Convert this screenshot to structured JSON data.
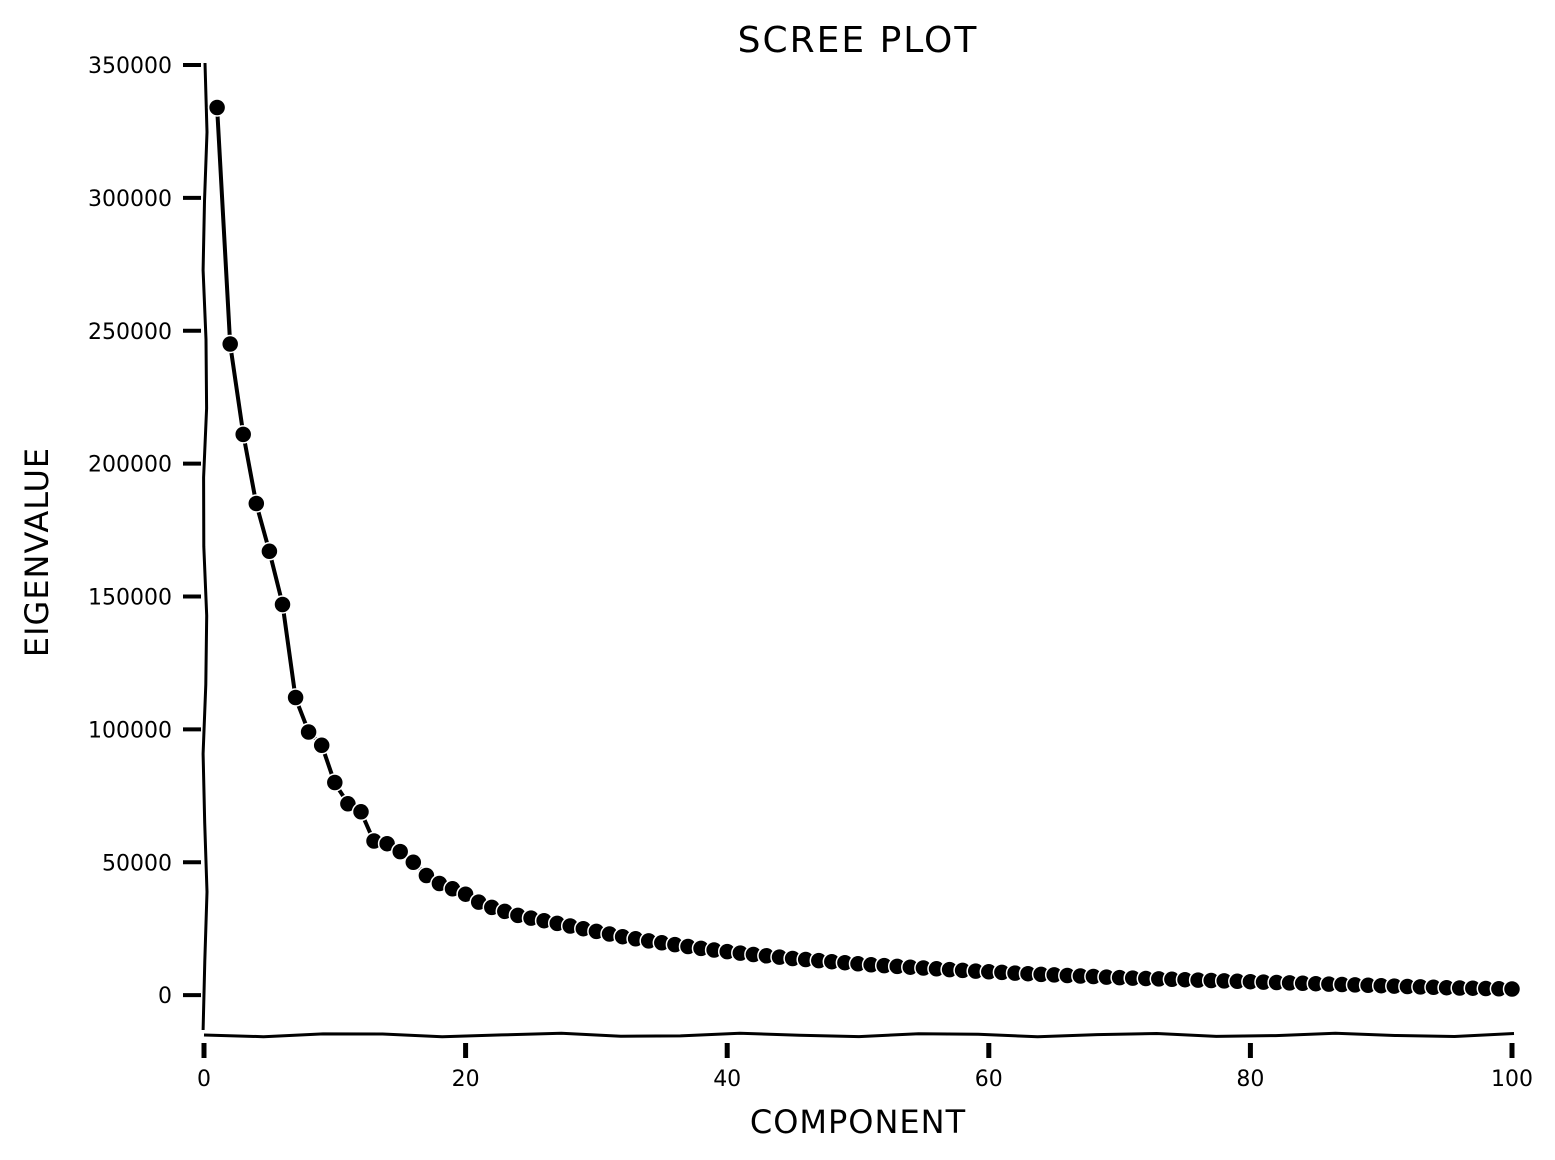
{
  "chart_data": {
    "type": "line",
    "title": "SCREE PLOT",
    "xlabel": "COMPONENT",
    "ylabel": "EIGENVALUE",
    "xlim": [
      0,
      100
    ],
    "ylim": [
      -15000,
      350000
    ],
    "xticks": [
      0,
      20,
      40,
      60,
      80,
      100
    ],
    "xtick_labels": [
      "0",
      "20",
      "40",
      "60",
      "80",
      "100"
    ],
    "yticks": [
      0,
      50000,
      100000,
      150000,
      200000,
      250000,
      300000,
      350000
    ],
    "ytick_labels": [
      "0",
      "50000",
      "100000",
      "150000",
      "200000",
      "250000",
      "300000",
      "350000"
    ],
    "grid": false,
    "style": "xkcd",
    "line_color": "#000000",
    "marker": "circle",
    "series": [
      {
        "x": [
          1,
          2,
          3,
          4,
          5,
          6,
          7,
          8,
          9,
          10,
          11,
          12,
          13,
          14,
          15,
          16,
          17,
          18,
          19,
          20,
          21,
          22,
          23,
          24,
          25,
          26,
          27,
          28,
          29,
          30,
          31,
          32,
          33,
          34,
          35,
          36,
          37,
          38,
          39,
          40,
          41,
          42,
          43,
          44,
          45,
          46,
          47,
          48,
          49,
          50,
          51,
          52,
          53,
          54,
          55,
          56,
          57,
          58,
          59,
          60,
          61,
          62,
          63,
          64,
          65,
          66,
          67,
          68,
          69,
          70,
          71,
          72,
          73,
          74,
          75,
          76,
          77,
          78,
          79,
          80,
          81,
          82,
          83,
          84,
          85,
          86,
          87,
          88,
          89,
          90,
          91,
          92,
          93,
          94,
          95,
          96,
          97,
          98,
          99,
          100
        ],
        "values": [
          334000,
          245000,
          211000,
          185000,
          167000,
          147000,
          112000,
          99000,
          94000,
          80000,
          72000,
          69000,
          58000,
          57000,
          54000,
          50000,
          45000,
          42000,
          40000,
          38000,
          35000,
          33000,
          31500,
          30000,
          29000,
          28000,
          27000,
          26000,
          25000,
          24000,
          23000,
          22000,
          21200,
          20400,
          19700,
          19000,
          18300,
          17600,
          17000,
          16400,
          15800,
          15300,
          14800,
          14300,
          13800,
          13400,
          13000,
          12600,
          12200,
          11800,
          11400,
          11100,
          10800,
          10500,
          10200,
          9900,
          9600,
          9300,
          9050,
          8800,
          8550,
          8300,
          8050,
          7800,
          7600,
          7400,
          7200,
          7000,
          6800,
          6600,
          6400,
          6250,
          6100,
          5950,
          5800,
          5650,
          5500,
          5350,
          5200,
          5050,
          4900,
          4750,
          4600,
          4450,
          4300,
          4150,
          4000,
          3850,
          3700,
          3550,
          3400,
          3250,
          3100,
          2950,
          2800,
          2700,
          2600,
          2500,
          2400,
          2300
        ]
      }
    ]
  }
}
